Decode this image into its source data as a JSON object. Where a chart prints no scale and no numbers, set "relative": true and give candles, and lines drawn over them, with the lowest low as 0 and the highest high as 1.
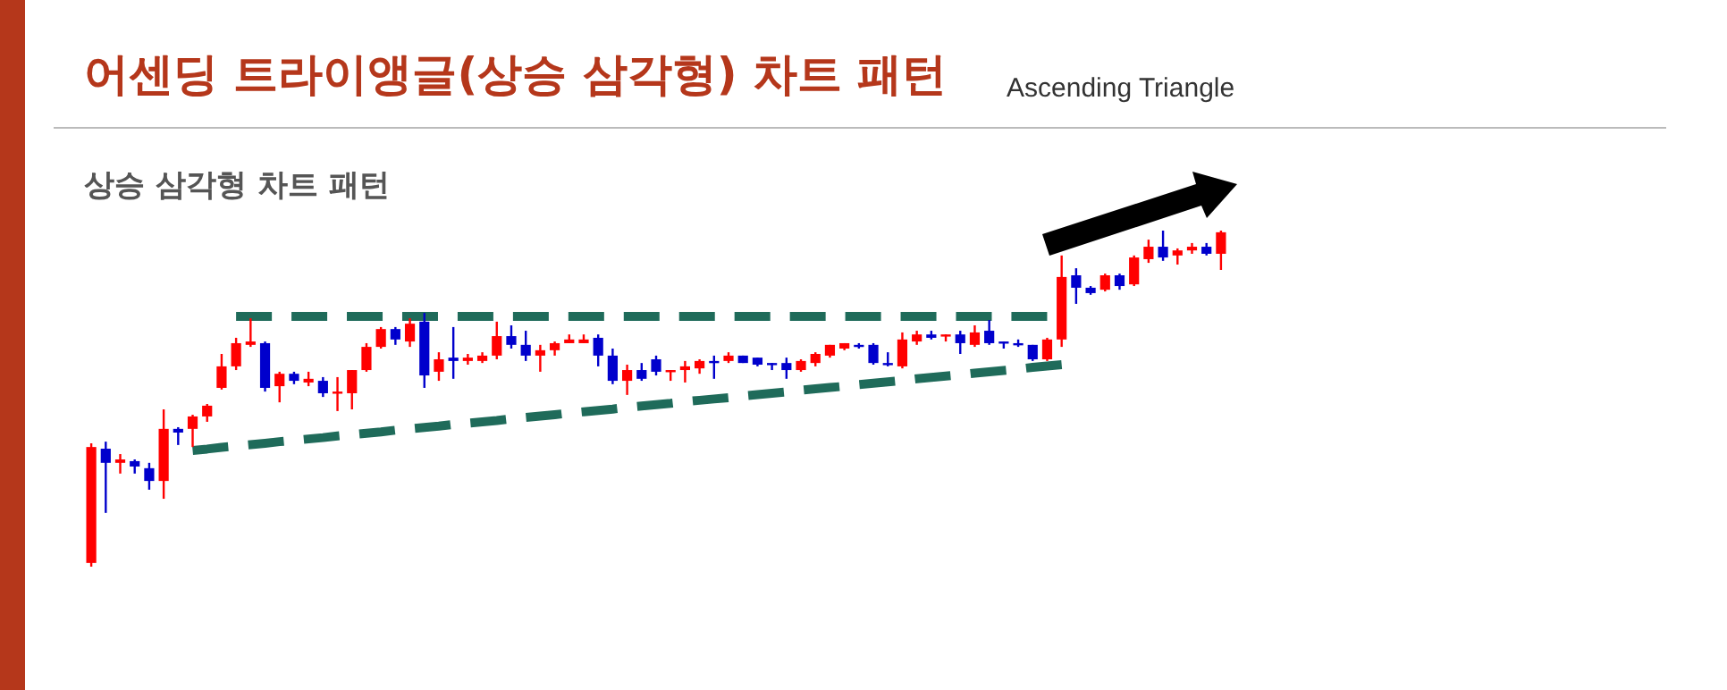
{
  "chart_data": {
    "type": "candlestick",
    "title": "어센딩 트라이앵글(상승 삼각형) 차트 패턴",
    "subtitle": "Ascending Triangle",
    "annotations": [
      "상승 삼각형 차트 패턴"
    ],
    "relative": true,
    "categories": [
      null,
      null,
      null,
      null,
      null,
      null,
      null,
      null,
      null,
      null,
      null,
      null,
      null,
      null,
      null,
      null,
      null,
      null,
      null,
      null,
      null,
      null,
      null,
      null,
      null,
      null,
      null,
      null,
      null,
      null,
      null,
      null,
      null,
      null,
      null,
      null,
      null,
      null,
      null,
      null,
      null,
      null,
      null,
      null,
      null,
      null,
      null,
      null,
      null,
      null,
      null,
      null,
      null,
      null,
      null,
      null,
      null,
      null,
      null,
      null,
      null,
      null,
      null,
      null,
      null,
      null,
      null,
      null,
      null,
      null,
      null,
      null,
      null,
      null,
      null,
      null,
      null,
      null,
      null
    ],
    "ohlc": [
      [
        0.011,
        0.367,
        0,
        0.356
      ],
      [
        0.351,
        0.372,
        0.16,
        0.309
      ],
      [
        0.309,
        0.335,
        0.277,
        0.319
      ],
      [
        0.314,
        0.319,
        0.277,
        0.298
      ],
      [
        0.293,
        0.309,
        0.229,
        0.255
      ],
      [
        0.255,
        0.468,
        0.202,
        0.41
      ],
      [
        0.41,
        0.415,
        0.362,
        0.399
      ],
      [
        0.41,
        0.452,
        0.356,
        0.447
      ],
      [
        0.447,
        0.484,
        0.431,
        0.479
      ],
      [
        0.532,
        0.633,
        0.527,
        0.596
      ],
      [
        0.596,
        0.681,
        0.585,
        0.665
      ],
      [
        0.66,
        0.739,
        0.654,
        0.67
      ],
      [
        0.665,
        0.67,
        0.521,
        0.532
      ],
      [
        0.537,
        0.58,
        0.489,
        0.574
      ],
      [
        0.574,
        0.58,
        0.543,
        0.553
      ],
      [
        0.548,
        0.58,
        0.537,
        0.559
      ],
      [
        0.553,
        0.564,
        0.505,
        0.516
      ],
      [
        0.516,
        0.564,
        0.463,
        0.521
      ],
      [
        0.516,
        0.585,
        0.468,
        0.585
      ],
      [
        0.585,
        0.665,
        0.58,
        0.654
      ],
      [
        0.654,
        0.713,
        0.649,
        0.707
      ],
      [
        0.707,
        0.713,
        0.66,
        0.676
      ],
      [
        0.67,
        0.739,
        0.654,
        0.723
      ],
      [
        0.729,
        0.755,
        0.532,
        0.569
      ],
      [
        0.58,
        0.638,
        0.553,
        0.617
      ],
      [
        0.622,
        0.713,
        0.559,
        0.612
      ],
      [
        0.612,
        0.633,
        0.601,
        0.622
      ],
      [
        0.612,
        0.638,
        0.606,
        0.628
      ],
      [
        0.628,
        0.729,
        0.617,
        0.686
      ],
      [
        0.686,
        0.718,
        0.649,
        0.66
      ],
      [
        0.66,
        0.702,
        0.612,
        0.628
      ],
      [
        0.628,
        0.66,
        0.58,
        0.644
      ],
      [
        0.644,
        0.67,
        0.628,
        0.665
      ],
      [
        0.665,
        0.691,
        0.665,
        0.676
      ],
      [
        0.665,
        0.691,
        0.665,
        0.676
      ],
      [
        0.681,
        0.691,
        0.596,
        0.628
      ],
      [
        0.628,
        0.649,
        0.543,
        0.553
      ],
      [
        0.553,
        0.601,
        0.511,
        0.585
      ],
      [
        0.585,
        0.606,
        0.553,
        0.559
      ],
      [
        0.617,
        0.628,
        0.569,
        0.58
      ],
      [
        0.58,
        0.585,
        0.553,
        0.585
      ],
      [
        0.585,
        0.612,
        0.548,
        0.596
      ],
      [
        0.59,
        0.617,
        0.574,
        0.612
      ],
      [
        0.612,
        0.628,
        0.559,
        0.606
      ],
      [
        0.612,
        0.638,
        0.606,
        0.628
      ],
      [
        0.628,
        0.628,
        0.606,
        0.606
      ],
      [
        0.622,
        0.622,
        0.596,
        0.601
      ],
      [
        0.606,
        0.606,
        0.585,
        0.601
      ],
      [
        0.606,
        0.622,
        0.559,
        0.585
      ],
      [
        0.585,
        0.617,
        0.58,
        0.612
      ],
      [
        0.606,
        0.638,
        0.596,
        0.633
      ],
      [
        0.628,
        0.66,
        0.622,
        0.66
      ],
      [
        0.649,
        0.665,
        0.644,
        0.665
      ],
      [
        0.66,
        0.665,
        0.649,
        0.654
      ],
      [
        0.66,
        0.665,
        0.601,
        0.606
      ],
      [
        0.606,
        0.638,
        0.596,
        0.601
      ],
      [
        0.596,
        0.697,
        0.59,
        0.676
      ],
      [
        0.67,
        0.702,
        0.66,
        0.691
      ],
      [
        0.691,
        0.702,
        0.676,
        0.681
      ],
      [
        0.686,
        0.691,
        0.67,
        0.691
      ],
      [
        0.691,
        0.702,
        0.633,
        0.665
      ],
      [
        0.66,
        0.718,
        0.654,
        0.697
      ],
      [
        0.702,
        0.734,
        0.66,
        0.665
      ],
      [
        0.67,
        0.67,
        0.649,
        0.665
      ],
      [
        0.665,
        0.676,
        0.654,
        0.66
      ],
      [
        0.66,
        0.66,
        0.612,
        0.617
      ],
      [
        0.617,
        0.681,
        0.612,
        0.676
      ],
      [
        0.676,
        0.926,
        0.654,
        0.862
      ],
      [
        0.867,
        0.888,
        0.782,
        0.83
      ],
      [
        0.83,
        0.835,
        0.809,
        0.814
      ],
      [
        0.824,
        0.872,
        0.819,
        0.867
      ],
      [
        0.867,
        0.872,
        0.824,
        0.835
      ],
      [
        0.84,
        0.926,
        0.835,
        0.92
      ],
      [
        0.915,
        0.973,
        0.904,
        0.952
      ],
      [
        0.952,
        1,
        0.91,
        0.92
      ],
      [
        0.926,
        0.947,
        0.899,
        0.941
      ],
      [
        0.941,
        0.963,
        0.931,
        0.952
      ],
      [
        0.952,
        0.963,
        0.926,
        0.931
      ],
      [
        0.931,
        1,
        0.883,
        0.995
      ]
    ],
    "colors": [
      "#ff0000",
      "#0000cc",
      "#ff0000",
      "#0000cc",
      "#0000cc",
      "#ff0000",
      "#0000cc",
      "#ff0000",
      "#ff0000",
      "#ff0000",
      "#ff0000",
      "#ff0000",
      "#0000cc",
      "#ff0000",
      "#0000cc",
      "#ff0000",
      "#0000cc",
      "#ff0000",
      "#ff0000",
      "#ff0000",
      "#ff0000",
      "#0000cc",
      "#ff0000",
      "#0000cc",
      "#ff0000",
      "#0000cc",
      "#ff0000",
      "#ff0000",
      "#ff0000",
      "#0000cc",
      "#0000cc",
      "#ff0000",
      "#ff0000",
      "#ff0000",
      "#ff0000",
      "#0000cc",
      "#0000cc",
      "#ff0000",
      "#0000cc",
      "#0000cc",
      "#ff0000",
      "#ff0000",
      "#ff0000",
      "#0000cc",
      "#ff0000",
      "#0000cc",
      "#0000cc",
      "#0000cc",
      "#0000cc",
      "#ff0000",
      "#ff0000",
      "#ff0000",
      "#ff0000",
      "#0000cc",
      "#0000cc",
      "#0000cc",
      "#ff0000",
      "#ff0000",
      "#0000cc",
      "#ff0000",
      "#0000cc",
      "#ff0000",
      "#0000cc",
      "#0000cc",
      "#0000cc",
      "#0000cc",
      "#ff0000",
      "#ff0000",
      "#0000cc",
      "#0000cc",
      "#ff0000",
      "#0000cc",
      "#ff0000",
      "#ff0000",
      "#0000cc",
      "#ff0000",
      "#ff0000",
      "#0000cc",
      "#ff0000"
    ],
    "series": [
      {
        "type": "line",
        "color": "#1f6b5a",
        "line_style": "dashed",
        "values": [
          null,
          null,
          null,
          null,
          null,
          null,
          null,
          null,
          null,
          null,
          0.745,
          0.745,
          0.745,
          0.745,
          0.745,
          0.745,
          0.745,
          0.745,
          0.745,
          0.745,
          0.745,
          0.745,
          0.745,
          0.745,
          0.745,
          0.745,
          0.745,
          0.745,
          0.745,
          0.745,
          0.745,
          0.745,
          0.745,
          0.745,
          0.745,
          0.745,
          0.745,
          0.745,
          0.745,
          0.745,
          0.745,
          0.745,
          0.745,
          0.745,
          0.745,
          0.745,
          0.745,
          0.745,
          0.745,
          0.745,
          0.745,
          0.745,
          0.745,
          0.745,
          0.745,
          0.745,
          0.745,
          0.745,
          0.745,
          0.745,
          0.745,
          0.745,
          0.745,
          0.745,
          0.745,
          0.745,
          0.745,
          null,
          null,
          null,
          null,
          null,
          null,
          null,
          null,
          null,
          null,
          null,
          null
        ]
      },
      {
        "type": "line",
        "color": "#1f6b5a",
        "line_style": "dashed",
        "values": [
          null,
          null,
          null,
          null,
          null,
          null,
          null,
          0.346,
          0.35,
          0.355,
          0.359,
          0.363,
          0.367,
          0.372,
          0.376,
          0.38,
          0.384,
          0.389,
          0.393,
          0.397,
          0.401,
          0.406,
          0.41,
          0.414,
          0.418,
          0.423,
          0.427,
          0.431,
          0.435,
          0.44,
          0.444,
          0.448,
          0.452,
          0.457,
          0.461,
          0.465,
          0.469,
          0.474,
          0.478,
          0.482,
          0.486,
          0.491,
          0.495,
          0.499,
          0.503,
          0.508,
          0.512,
          0.516,
          0.52,
          0.525,
          0.529,
          0.533,
          0.537,
          0.542,
          0.546,
          0.55,
          0.554,
          0.559,
          0.563,
          0.567,
          0.571,
          0.576,
          0.58,
          0.584,
          0.588,
          0.593,
          0.597,
          0.601,
          null,
          null,
          null,
          null,
          null,
          null,
          null,
          null,
          null,
          null,
          null
        ]
      }
    ]
  }
}
